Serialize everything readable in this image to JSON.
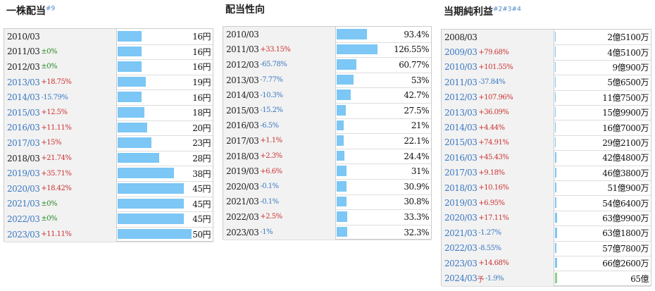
{
  "tables": [
    {
      "title": "一株配当",
      "note": "#9",
      "xlim": [
        0,
        64
      ],
      "rows": [
        {
          "year": "2010/03",
          "value": 16,
          "label": "16円",
          "linked": false
        },
        {
          "year": "2011/03",
          "change": "±0%",
          "value": 16,
          "label": "16円",
          "linked": false
        },
        {
          "year": "2012/03",
          "change": "±0%",
          "value": 16,
          "label": "16円",
          "linked": false
        },
        {
          "year": "2013/03",
          "change": "+18.75%",
          "value": 19,
          "label": "19円",
          "linked": true
        },
        {
          "year": "2014/03",
          "change": "-15.79%",
          "value": 16,
          "label": "16円",
          "linked": true
        },
        {
          "year": "2015/03",
          "change": "+12.5%",
          "value": 18,
          "label": "18円",
          "linked": true
        },
        {
          "year": "2016/03",
          "change": "+11.11%",
          "value": 20,
          "label": "20円",
          "linked": true
        },
        {
          "year": "2017/03",
          "change": "+15%",
          "value": 23,
          "label": "23円",
          "linked": true
        },
        {
          "year": "2018/03",
          "change": "+21.74%",
          "value": 28,
          "label": "28円",
          "linked": false
        },
        {
          "year": "2019/03",
          "change": "+35.71%",
          "value": 38,
          "label": "38円",
          "linked": true
        },
        {
          "year": "2020/03",
          "change": "+18.42%",
          "value": 45,
          "label": "45円",
          "linked": true
        },
        {
          "year": "2021/03",
          "change": "±0%",
          "value": 45,
          "label": "45円",
          "linked": true
        },
        {
          "year": "2022/03",
          "change": "±0%",
          "value": 45,
          "label": "45円",
          "linked": true
        },
        {
          "year": "2023/03",
          "change": "+11.11%",
          "value": 50,
          "label": "50円",
          "linked": true
        }
      ]
    },
    {
      "title": "配当性向",
      "xlim": [
        0,
        290
      ],
      "rows": [
        {
          "year": "2010/03",
          "value": 93.4,
          "label": "93.4%",
          "linked": false
        },
        {
          "year": "2011/03",
          "change": "+33.15%",
          "value": 126.55,
          "label": "126.55%",
          "linked": false
        },
        {
          "year": "2012/03",
          "change": "-65.78%",
          "value": 60.77,
          "label": "60.77%",
          "linked": false
        },
        {
          "year": "2013/03",
          "change": "-7.77%",
          "value": 53,
          "label": "53%",
          "linked": false
        },
        {
          "year": "2014/03",
          "change": "-10.3%",
          "value": 42.7,
          "label": "42.7%",
          "linked": false
        },
        {
          "year": "2015/03",
          "change": "-15.2%",
          "value": 27.5,
          "label": "27.5%",
          "linked": false
        },
        {
          "year": "2016/03",
          "change": "-6.5%",
          "value": 21,
          "label": "21%",
          "linked": false
        },
        {
          "year": "2017/03",
          "change": "+1.1%",
          "value": 22.1,
          "label": "22.1%",
          "linked": false
        },
        {
          "year": "2018/03",
          "change": "+2.3%",
          "value": 24.4,
          "label": "24.4%",
          "linked": false
        },
        {
          "year": "2019/03",
          "change": "+6.6%",
          "value": 31,
          "label": "31%",
          "linked": false
        },
        {
          "year": "2020/03",
          "change": "-0.1%",
          "value": 30.9,
          "label": "30.9%",
          "linked": false
        },
        {
          "year": "2021/03",
          "change": "-0.1%",
          "value": 30.8,
          "label": "30.8%",
          "linked": false
        },
        {
          "year": "2022/03",
          "change": "+2.5%",
          "value": 33.3,
          "label": "33.3%",
          "linked": false
        },
        {
          "year": "2023/03",
          "change": "-1%",
          "value": 32.3,
          "label": "32.3%",
          "linked": false
        }
      ]
    },
    {
      "title": "当期純利益",
      "note": "#2#3#4",
      "xlim": [
        0,
        3400
      ],
      "rows": [
        {
          "year": "2008/03",
          "value": 2.51,
          "label": "2億5100万",
          "linked": false
        },
        {
          "year": "2009/03",
          "change": "+79.68%",
          "value": 4.51,
          "label": "4億5100万",
          "linked": true
        },
        {
          "year": "2010/03",
          "change": "+101.55%",
          "value": 9.09,
          "label": "9億900万",
          "linked": true
        },
        {
          "year": "2011/03",
          "change": "-37.84%",
          "value": 5.65,
          "label": "5億6500万",
          "linked": true
        },
        {
          "year": "2012/03",
          "change": "+107.96%",
          "value": 11.75,
          "label": "11億7500万",
          "linked": true
        },
        {
          "year": "2013/03",
          "change": "+36.09%",
          "value": 15.99,
          "label": "15億9900万",
          "linked": true
        },
        {
          "year": "2014/03",
          "change": "+4.44%",
          "value": 16.7,
          "label": "16億7000万",
          "linked": true
        },
        {
          "year": "2015/03",
          "change": "+74.91%",
          "value": 29.21,
          "label": "29億2100万",
          "linked": true
        },
        {
          "year": "2016/03",
          "change": "+45.43%",
          "value": 42.48,
          "label": "42億4800万",
          "linked": true
        },
        {
          "year": "2017/03",
          "change": "+9.18%",
          "value": 46.38,
          "label": "46億3800万",
          "linked": true
        },
        {
          "year": "2018/03",
          "change": "+10.16%",
          "value": 51.09,
          "label": "51億900万",
          "linked": true
        },
        {
          "year": "2019/03",
          "change": "+6.95%",
          "value": 54.64,
          "label": "54億6400万",
          "linked": true
        },
        {
          "year": "2020/03",
          "change": "+17.11%",
          "value": 63.99,
          "label": "63億9900万",
          "linked": true
        },
        {
          "year": "2021/03",
          "change": "-1.27%",
          "value": 63.18,
          "label": "63億1800万",
          "linked": true
        },
        {
          "year": "2022/03",
          "change": "-8.55%",
          "value": 57.78,
          "label": "57億7800万",
          "linked": true
        },
        {
          "year": "2023/03",
          "change": "+14.68%",
          "value": 66.26,
          "label": "66億2600万",
          "linked": true
        },
        {
          "year": "2024/03",
          "forecast": "予",
          "change": "-1.9%",
          "value": 65,
          "label": "65億",
          "linked": true
        }
      ]
    }
  ]
}
